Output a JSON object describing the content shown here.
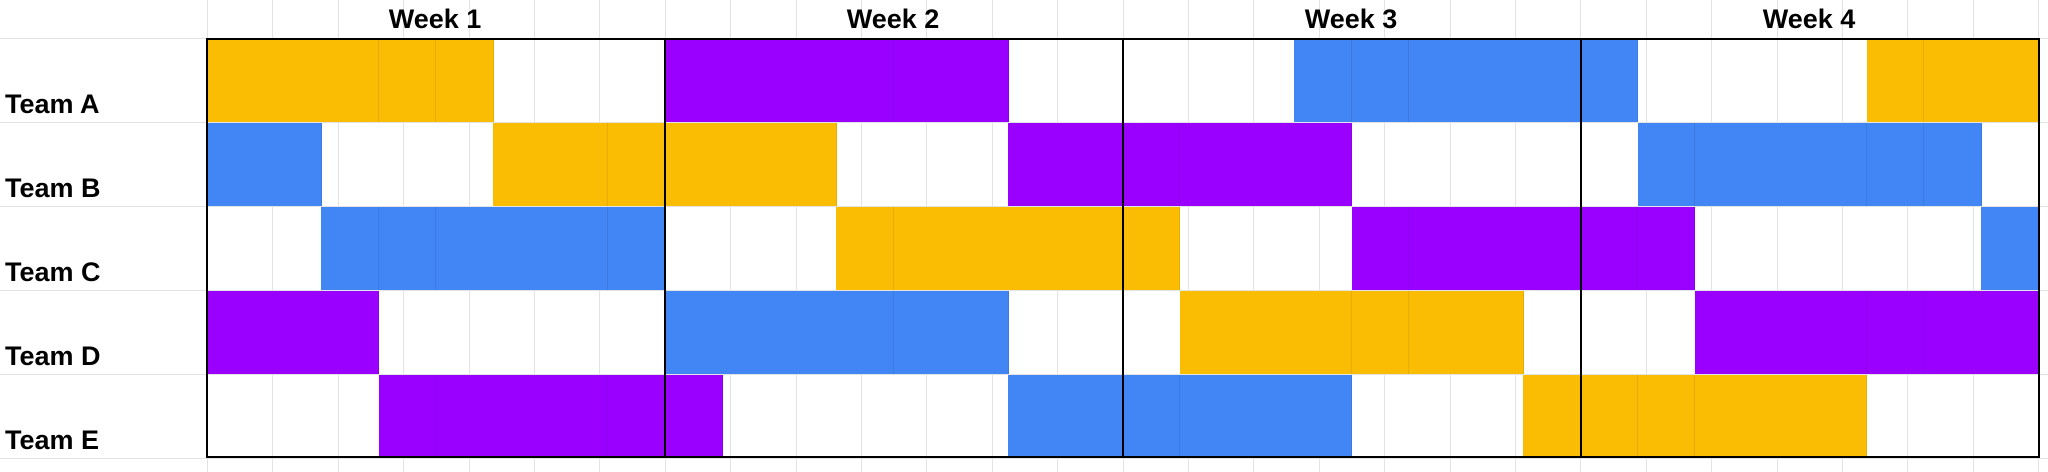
{
  "weeks": [
    {
      "label": "Week 1"
    },
    {
      "label": "Week 2"
    },
    {
      "label": "Week 3"
    },
    {
      "label": "Week 4"
    }
  ],
  "teams": [
    {
      "label": "Team A"
    },
    {
      "label": "Team B"
    },
    {
      "label": "Team C"
    },
    {
      "label": "Team D"
    },
    {
      "label": "Team E"
    }
  ],
  "colors": {
    "o": "#fbbc04",
    "p": "#9900ff",
    "b": "#4285f4",
    "w": "#ffffff"
  },
  "schedule": [
    "ooooowwwppppppwwwwwbbbbbbwwwwooo",
    "bbwwwoooooowwwppppppwwwwwbbbbbbw",
    "wwbbbbbbwwwoooooowwwppppppwwwwwb",
    "pppwwwwwbbbbbbwwwoooooowwwpppppp",
    "wwwppppppwwwwwbbbbbbwwwoooooowww"
  ]
}
